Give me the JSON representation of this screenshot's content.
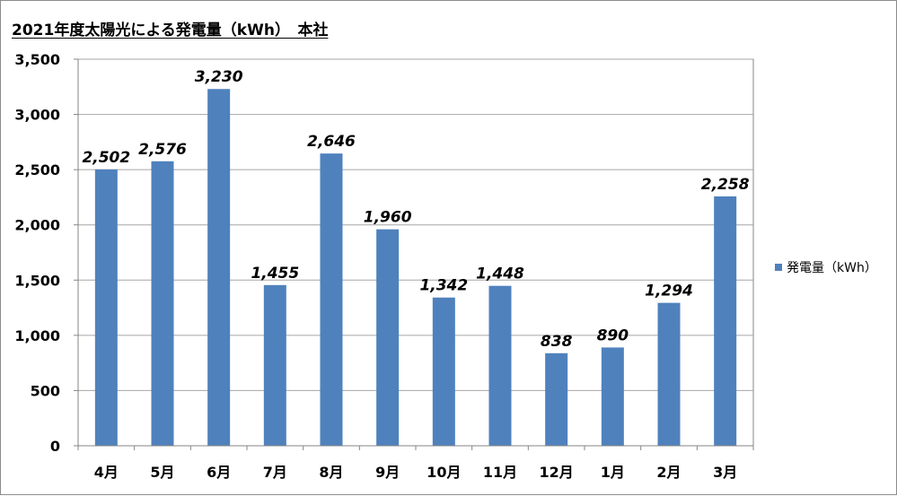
{
  "colors": {
    "bar": "#4F81BD",
    "grid": "#a6a6a6",
    "axis": "#868686"
  },
  "chart_data": {
    "type": "bar",
    "title": "2021年度太陽光による発電量（kWh）　本社",
    "categories": [
      "4月",
      "5月",
      "6月",
      "7月",
      "8月",
      "9月",
      "10月",
      "11月",
      "12月",
      "1月",
      "2月",
      "3月"
    ],
    "series": [
      {
        "name": "発電量（kWh）",
        "values": [
          2502,
          2576,
          3230,
          1455,
          2646,
          1960,
          1342,
          1448,
          838,
          890,
          1294,
          2258
        ]
      }
    ],
    "value_labels": [
      "2,502",
      "2,576",
      "3,230",
      "1,455",
      "2,646",
      "1,960",
      "1,342",
      "1,448",
      "838",
      "890",
      "1,294",
      "2,258"
    ],
    "y_ticks": [
      0,
      500,
      1000,
      1500,
      2000,
      2500,
      3000,
      3500
    ],
    "y_tick_labels": [
      "0",
      "500",
      "1,000",
      "1,500",
      "2,000",
      "2,500",
      "3,000",
      "3,500"
    ],
    "ylim": [
      0,
      3500
    ],
    "grid": true,
    "legend_position": "right"
  }
}
